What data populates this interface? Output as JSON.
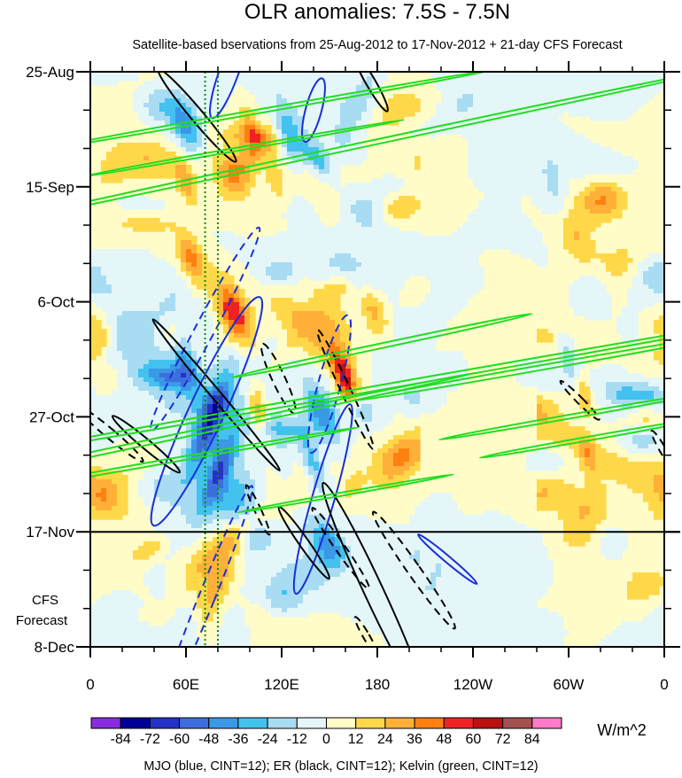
{
  "chart_data": {
    "type": "heatmap",
    "title": "OLR anomalies: 7.5S - 7.5N",
    "subtitle": "Satellite-based bservations from 25-Aug-2012 to 17-Nov-2012 + 21-day CFS Forecast",
    "x_axis": {
      "ticks": [
        {
          "lon": 0,
          "label": "0"
        },
        {
          "lon": 60,
          "label": "60E"
        },
        {
          "lon": 120,
          "label": "120E"
        },
        {
          "lon": 180,
          "label": "180"
        },
        {
          "lon": 240,
          "label": "120W"
        },
        {
          "lon": 300,
          "label": "60W"
        },
        {
          "lon": 360,
          "label": "0"
        }
      ],
      "range": [
        0,
        360
      ]
    },
    "y_axis": {
      "ticks": [
        {
          "day": 0,
          "label": "25-Aug"
        },
        {
          "day": 21,
          "label": "15-Sep"
        },
        {
          "day": 42,
          "label": "6-Oct"
        },
        {
          "day": 63,
          "label": "27-Oct"
        },
        {
          "day": 84,
          "label": "17-Nov"
        },
        {
          "day": 105,
          "label": "8-Dec"
        }
      ],
      "range": [
        "25-Aug-2012",
        "8-Dec-2012"
      ],
      "reversed": true,
      "forecast_start": "17-Nov",
      "forecast_label": [
        "CFS",
        "Forecast"
      ]
    },
    "colorbar": {
      "levels": [
        -84,
        -72,
        -60,
        -48,
        -36,
        -24,
        -12,
        0,
        12,
        24,
        36,
        48,
        60,
        72,
        84
      ],
      "labels": [
        "-84",
        "-72",
        "-60",
        "-48",
        "-36",
        "-24",
        "-12",
        "0",
        "12",
        "24",
        "36",
        "48",
        "60",
        "72",
        "84"
      ],
      "colors": [
        "#8a2be2",
        "#000099",
        "#2432c8",
        "#3d6fdc",
        "#3a98e6",
        "#43c2f0",
        "#a8dcf2",
        "#e4f6f8",
        "#fffcc8",
        "#ffd84a",
        "#ffb038",
        "#ff8010",
        "#ee2222",
        "#bb1111",
        "#a65050",
        "#ff7ac8"
      ],
      "unit": "W/m^2"
    },
    "features": {
      "reference_lines_lon": [
        72,
        80
      ],
      "mjo": [
        {
          "lon": 87,
          "day": 0,
          "half_width": 6,
          "half_length": 9,
          "angle": 20,
          "dashed": false
        },
        {
          "lon": 140,
          "day": 7,
          "half_width": 5,
          "half_length": 6,
          "angle": 15,
          "dashed": false
        },
        {
          "lon": 73,
          "day": 62,
          "half_width": 11,
          "half_length": 23,
          "angle": 25,
          "dashed": false
        },
        {
          "lon": 146,
          "day": 78,
          "half_width": 7,
          "half_length": 18,
          "angle": 16,
          "dashed": false
        },
        {
          "lon": 73,
          "day": 96,
          "half_width": 5,
          "half_length": 22,
          "angle": 22,
          "dashed": true
        },
        {
          "lon": 72,
          "day": 47,
          "half_width": 6,
          "half_length": 21,
          "angle": 28,
          "dashed": true
        },
        {
          "lon": 150,
          "day": 57,
          "half_width": 7,
          "half_length": 13,
          "angle": 15,
          "dashed": true
        },
        {
          "lon": 224,
          "day": 89,
          "half_width": 2,
          "half_length": 7,
          "angle": -50,
          "dashed": false
        }
      ],
      "er": [
        {
          "lon": 67,
          "day": 8,
          "half_width": 4,
          "half_length": 11,
          "angle": -40,
          "dashed": false
        },
        {
          "lon": 176,
          "day": 2,
          "half_width": 3,
          "half_length": 6,
          "angle": -30,
          "dashed": false
        },
        {
          "lon": 79,
          "day": 59,
          "half_width": 3,
          "half_length": 18,
          "angle": -40,
          "dashed": false
        },
        {
          "lon": 118,
          "day": 56,
          "half_width": 4,
          "half_length": 7,
          "angle": -25,
          "dashed": true
        },
        {
          "lon": 160,
          "day": 58,
          "half_width": 3,
          "half_length": 12,
          "angle": -25,
          "dashed": true
        },
        {
          "lon": 12,
          "day": 66,
          "half_width": 3,
          "half_length": 8,
          "angle": -50,
          "dashed": true
        },
        {
          "lon": 35,
          "day": 68,
          "half_width": 3,
          "half_length": 8,
          "angle": -50,
          "dashed": false
        },
        {
          "lon": 105,
          "day": 80,
          "half_width": 2,
          "half_length": 5,
          "angle": -25,
          "dashed": true
        },
        {
          "lon": 134,
          "day": 86,
          "half_width": 3,
          "half_length": 8,
          "angle": -35,
          "dashed": false
        },
        {
          "lon": 157,
          "day": 87,
          "half_width": 3,
          "half_length": 9,
          "angle": -35,
          "dashed": true
        },
        {
          "lon": 178,
          "day": 95,
          "half_width": 6,
          "half_length": 22,
          "angle": -25,
          "dashed": false
        },
        {
          "lon": 203,
          "day": 91,
          "half_width": 4,
          "half_length": 13,
          "angle": -35,
          "dashed": true
        },
        {
          "lon": 307,
          "day": 60,
          "half_width": 2,
          "half_length": 5,
          "angle": -45,
          "dashed": true
        },
        {
          "lon": 173,
          "day": 103,
          "half_width": 2,
          "half_length": 4,
          "angle": -30,
          "dashed": true
        },
        {
          "lon": 359,
          "day": 69,
          "half_width": 2,
          "half_length": 4,
          "angle": -30,
          "dashed": true
        }
      ],
      "kelvin": [
        {
          "lon": 160,
          "day": 14,
          "half_width": 1.5,
          "half_length": 70,
          "angle": 78
        },
        {
          "lon": 110,
          "day": 7,
          "half_width": 1.2,
          "half_length": 42,
          "angle": 80
        },
        {
          "lon": 95,
          "day": 14,
          "half_width": 1,
          "half_length": 30,
          "angle": 80
        },
        {
          "lon": 175,
          "day": 58,
          "half_width": 1.5,
          "half_length": 80,
          "angle": 80
        },
        {
          "lon": 183,
          "day": 50,
          "half_width": 1.5,
          "half_length": 28,
          "angle": 78
        },
        {
          "lon": 47,
          "day": 67,
          "half_width": 1.5,
          "half_length": 58,
          "angle": 78
        },
        {
          "lon": 50,
          "day": 71,
          "half_width": 1.2,
          "half_length": 35,
          "angle": 80
        },
        {
          "lon": 283,
          "day": 54,
          "half_width": 1.5,
          "half_length": 35,
          "angle": 80
        },
        {
          "lon": 300,
          "day": 63,
          "half_width": 1.2,
          "half_length": 24,
          "angle": 80
        },
        {
          "lon": 312,
          "day": 67,
          "half_width": 1.2,
          "half_length": 20,
          "angle": 80
        },
        {
          "lon": 160,
          "day": 77,
          "half_width": 1,
          "half_length": 20,
          "angle": 80
        }
      ]
    },
    "footnote": "MJO (blue, CINT=12); ER (black, CINT=12); Kelvin (green, CINT=12)"
  }
}
